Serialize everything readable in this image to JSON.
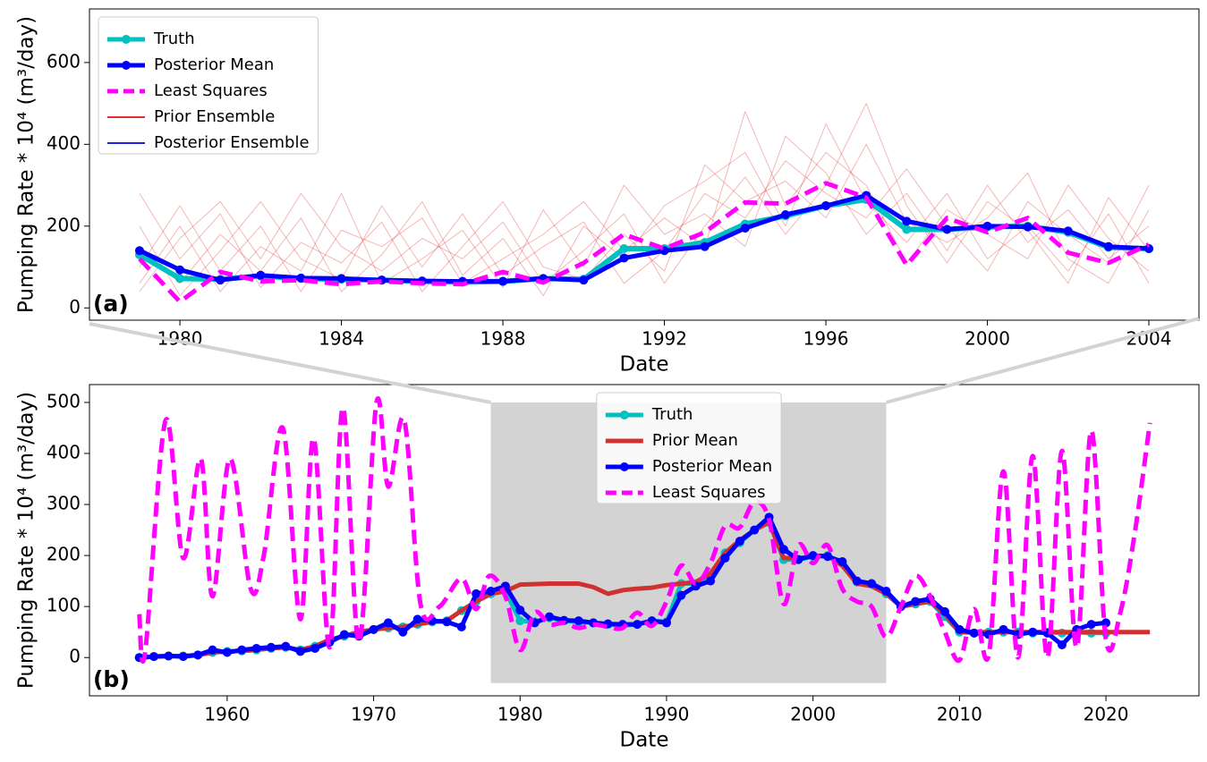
{
  "chart_data": [
    {
      "type": "line",
      "panel": "(a)",
      "xlabel": "Date",
      "ylabel": "Pumping Rate * 10⁴ (m³/day)",
      "xlim": [
        1977.76,
        2005.24
      ],
      "ylim": [
        -30,
        731
      ],
      "xticks": [
        1980,
        1984,
        1988,
        1992,
        1996,
        2000,
        2004
      ],
      "yticks": [
        0,
        200,
        400,
        600
      ],
      "legend": "upper left",
      "x": [
        1979,
        1980,
        1981,
        1982,
        1983,
        1984,
        1985,
        1986,
        1987,
        1988,
        1989,
        1990,
        1991,
        1992,
        1993,
        1994,
        1995,
        1996,
        1997,
        1998,
        1999,
        2000,
        2001,
        2002,
        2003,
        2004
      ],
      "ensembles": [
        {
          "name": "Prior Ensemble",
          "color": "#e03030",
          "members": [
            [
              150,
              60,
              180,
              90,
              220,
              40,
              130,
              260,
              80,
              170,
              30,
              200,
              120,
              250,
              310,
              380,
              200,
              450,
              260,
              160,
              280,
              120,
              200,
              90,
              230,
              60
            ],
            [
              60,
              200,
              40,
              150,
              90,
              280,
              60,
              120,
              190,
              50,
              240,
              100,
              300,
              180,
              230,
              150,
              420,
              330,
              180,
              280,
              140,
              300,
              160,
              240,
              120,
              200
            ],
            [
              280,
              120,
              230,
              50,
              160,
              110,
              210,
              40,
              150,
              260,
              100,
              70,
              180,
              90,
              350,
              260,
              310,
              220,
              400,
              210,
              160,
              220,
              330,
              120,
              60,
              240
            ],
            [
              100,
              250,
              90,
              200,
              40,
              190,
              150,
              220,
              60,
              120,
              180,
              260,
              140,
              220,
              150,
              480,
              250,
              380,
              300,
              110,
              240,
              180,
              120,
              300,
              170,
              90
            ],
            [
              200,
              30,
              140,
              260,
              120,
              70,
              250,
              100,
              230,
              80,
              150,
              210,
              60,
              140,
              280,
              220,
              360,
              280,
              220,
              340,
              200,
              90,
              260,
              180,
              110,
              300
            ],
            [
              40,
              170,
              260,
              120,
              280,
              150,
              90,
              170,
              120,
              210,
              60,
              140,
              230,
              60,
              200,
              320,
              180,
              300,
              500,
              250,
              110,
              260,
              190,
              60,
              270,
              140
            ]
          ]
        },
        {
          "name": "Posterior Ensemble",
          "color": "#2020e0",
          "members": [
            [
              135,
              88,
              65,
              78,
              70,
              70,
              66,
              64,
              63,
              64,
              70,
              66,
              118,
              138,
              148,
              190,
              225,
              248,
              272,
              208,
              190,
              198,
              196,
              186,
              148,
              143
            ],
            [
              146,
              98,
              72,
              82,
              76,
              74,
              70,
              68,
              67,
              67,
              74,
              70,
              126,
              143,
              153,
              199,
              231,
              253,
              278,
              216,
              195,
              203,
              201,
              191,
              153,
              148
            ]
          ]
        }
      ],
      "series": [
        {
          "name": "Truth",
          "color": "#00c0c0",
          "markers": true,
          "width": 6,
          "values": [
            130,
            72,
            70,
            78,
            72,
            70,
            68,
            65,
            63,
            65,
            72,
            70,
            145,
            145,
            160,
            205,
            225,
            250,
            265,
            192,
            192,
            198,
            200,
            185,
            148,
            145
          ]
        },
        {
          "name": "Posterior Mean",
          "color": "#0000ff",
          "markers": true,
          "width": 5,
          "values": [
            140,
            93,
            68,
            80,
            73,
            72,
            68,
            66,
            65,
            65,
            72,
            68,
            122,
            140,
            150,
            195,
            228,
            250,
            275,
            212,
            192,
            200,
            198,
            188,
            150,
            145
          ]
        },
        {
          "name": "Least Squares",
          "color": "#ff00ff",
          "dashed": true,
          "width": 5,
          "values": [
            120,
            15,
            88,
            65,
            68,
            58,
            65,
            60,
            58,
            88,
            62,
            110,
            180,
            145,
            185,
            258,
            255,
            305,
            270,
            105,
            220,
            185,
            220,
            135,
            110,
            155
          ]
        }
      ]
    },
    {
      "type": "line",
      "panel": "(b)",
      "xlabel": "Date",
      "ylabel": "Pumping Rate * 10⁴ (m³/day)",
      "xlim": [
        1950.6,
        2026.35
      ],
      "ylim": [
        -75,
        535
      ],
      "xticks": [
        1960,
        1970,
        1980,
        1990,
        2000,
        2010,
        2020
      ],
      "yticks": [
        0,
        100,
        200,
        300,
        400,
        500
      ],
      "legend": "upper center",
      "zoom_region": {
        "x": [
          1978,
          2005
        ],
        "y": [
          -50,
          500
        ]
      },
      "series": [
        {
          "name": "Truth",
          "color": "#00c0c0",
          "markers": true,
          "width": 5,
          "x": [
            1954,
            1955,
            1956,
            1957,
            1958,
            1959,
            1960,
            1961,
            1962,
            1963,
            1964,
            1965,
            1966,
            1967,
            1968,
            1969,
            1970,
            1971,
            1972,
            1973,
            1974,
            1975,
            1976,
            1977,
            1978,
            1979,
            1980,
            1981,
            1982,
            1983,
            1984,
            1985,
            1986,
            1987,
            1988,
            1989,
            1990,
            1991,
            1992,
            1993,
            1994,
            1995,
            1996,
            1997,
            1998,
            1999,
            2000,
            2001,
            2002,
            2003,
            2004,
            2005,
            2006,
            2007,
            2008,
            2009,
            2010,
            2011,
            2012,
            2013,
            2014,
            2015,
            2016,
            2017,
            2018,
            2019,
            2020
          ],
          "values": [
            0,
            2,
            3,
            3,
            5,
            10,
            12,
            13,
            15,
            18,
            20,
            15,
            22,
            35,
            42,
            50,
            55,
            58,
            60,
            65,
            70,
            72,
            92,
            110,
            125,
            130,
            72,
            70,
            78,
            72,
            70,
            68,
            65,
            63,
            65,
            72,
            70,
            145,
            145,
            160,
            205,
            225,
            250,
            265,
            192,
            192,
            198,
            200,
            185,
            148,
            145,
            125,
            100,
            105,
            110,
            80,
            50,
            48,
            50,
            50,
            50,
            48,
            50,
            48,
            50,
            48,
            48
          ]
        },
        {
          "name": "Prior Mean",
          "color": "#d03030",
          "width": 5,
          "x": [
            1954,
            1955,
            1956,
            1957,
            1958,
            1959,
            1960,
            1961,
            1962,
            1963,
            1964,
            1965,
            1966,
            1967,
            1968,
            1969,
            1970,
            1971,
            1972,
            1973,
            1974,
            1975,
            1976,
            1977,
            1978,
            1979,
            1980,
            1981,
            1982,
            1983,
            1984,
            1985,
            1986,
            1987,
            1988,
            1989,
            1990,
            1991,
            1992,
            1993,
            1994,
            1995,
            1996,
            1997,
            1998,
            1999,
            2000,
            2001,
            2002,
            2003,
            2004,
            2005,
            2006,
            2007,
            2008,
            2009,
            2010,
            2011,
            2012,
            2013,
            2014,
            2015,
            2016,
            2017,
            2018,
            2019,
            2020,
            2021,
            2022,
            2023
          ],
          "values": [
            0,
            2,
            3,
            3,
            5,
            10,
            12,
            13,
            15,
            18,
            20,
            15,
            22,
            35,
            42,
            50,
            55,
            58,
            60,
            65,
            70,
            72,
            92,
            110,
            125,
            130,
            143,
            144,
            145,
            145,
            145,
            138,
            125,
            132,
            135,
            137,
            142,
            145,
            148,
            165,
            205,
            230,
            250,
            265,
            195,
            195,
            198,
            200,
            180,
            145,
            140,
            125,
            100,
            105,
            110,
            85,
            50,
            50,
            50,
            50,
            50,
            50,
            50,
            50,
            50,
            50,
            50,
            50,
            50,
            50
          ]
        },
        {
          "name": "Posterior Mean",
          "color": "#0000ff",
          "markers": true,
          "width": 5,
          "x": [
            1954,
            1955,
            1956,
            1957,
            1958,
            1959,
            1960,
            1961,
            1962,
            1963,
            1964,
            1965,
            1966,
            1967,
            1968,
            1969,
            1970,
            1971,
            1972,
            1973,
            1974,
            1975,
            1976,
            1977,
            1978,
            1979,
            1980,
            1981,
            1982,
            1983,
            1984,
            1985,
            1986,
            1987,
            1988,
            1989,
            1990,
            1991,
            1992,
            1993,
            1994,
            1995,
            1996,
            1997,
            1998,
            1999,
            2000,
            2001,
            2002,
            2003,
            2004,
            2005,
            2006,
            2007,
            2008,
            2009,
            2010,
            2011,
            2012,
            2013,
            2014,
            2015,
            2016,
            2017,
            2018,
            2019,
            2020
          ],
          "values": [
            0,
            2,
            3,
            2,
            5,
            15,
            10,
            15,
            18,
            20,
            22,
            12,
            18,
            30,
            45,
            42,
            55,
            68,
            50,
            75,
            72,
            70,
            60,
            125,
            130,
            140,
            93,
            68,
            80,
            73,
            72,
            68,
            66,
            65,
            65,
            72,
            68,
            122,
            140,
            150,
            195,
            228,
            250,
            275,
            212,
            192,
            200,
            198,
            188,
            150,
            145,
            130,
            100,
            110,
            115,
            90,
            55,
            48,
            45,
            55,
            45,
            50,
            48,
            25,
            55,
            65,
            68
          ]
        },
        {
          "name": "Least Squares",
          "color": "#ff00ff",
          "dashed": true,
          "smooth": true,
          "width": 5,
          "x": [
            1954,
            1954.4,
            1955.8,
            1957,
            1958.2,
            1959,
            1960.2,
            1961.6,
            1962.5,
            1963.8,
            1965,
            1965.9,
            1967,
            1967.9,
            1969,
            1970.2,
            1971,
            1972.1,
            1973.2,
            1974.5,
            1976,
            1977,
            1977.9,
            1979,
            1980,
            1981,
            1982,
            1983,
            1984,
            1985,
            1986,
            1987,
            1988,
            1989,
            1990,
            1991,
            1992,
            1993,
            1994,
            1995,
            1996,
            1997,
            1998,
            1999,
            2000,
            2001,
            2002,
            2003,
            2004,
            2005,
            2006,
            2007,
            2008,
            2009,
            2010,
            2011,
            2012,
            2013,
            2014,
            2015,
            2016,
            2017,
            2018,
            2019,
            2020,
            2021,
            2022,
            2023
          ],
          "values": [
            85,
            10,
            465,
            195,
            390,
            120,
            390,
            135,
            200,
            450,
            75,
            430,
            20,
            490,
            30,
            500,
            335,
            465,
            105,
            100,
            155,
            95,
            160,
            120,
            15,
            88,
            65,
            68,
            58,
            65,
            60,
            58,
            88,
            62,
            110,
            180,
            145,
            185,
            258,
            255,
            305,
            270,
            105,
            220,
            185,
            220,
            135,
            110,
            100,
            40,
            100,
            160,
            120,
            50,
            -5,
            95,
            5,
            365,
            0,
            395,
            0,
            405,
            20,
            445,
            35,
            90,
            250,
            460
          ]
        }
      ]
    }
  ]
}
